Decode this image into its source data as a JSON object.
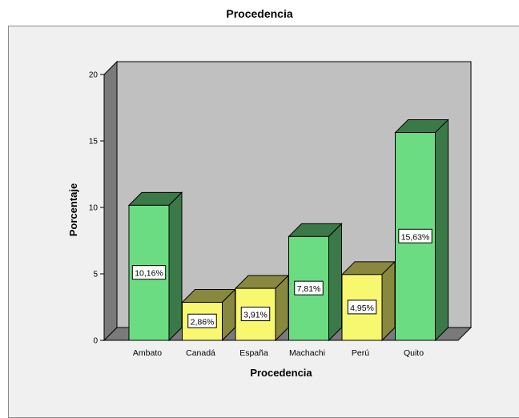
{
  "chart_data": {
    "type": "bar",
    "title": "Procedencia",
    "xlabel": "Procedencia",
    "ylabel": "Porcentaje",
    "categories": [
      "Ambato",
      "Canadá",
      "España",
      "Machachi",
      "Perú",
      "Quito"
    ],
    "values": [
      10.16,
      2.86,
      3.91,
      7.81,
      4.95,
      15.63
    ],
    "data_labels": [
      "10,16%",
      "2,86%",
      "3,91%",
      "7,81%",
      "4,95%",
      "15,63%"
    ],
    "bar_colors": [
      "#6cdc82",
      "#f8f870",
      "#f8f870",
      "#6cdc82",
      "#f8f870",
      "#6cdc82"
    ],
    "ylim": [
      0,
      20
    ],
    "yticks": [
      0,
      5,
      10,
      15,
      20
    ],
    "grid": false,
    "legend": "none"
  }
}
